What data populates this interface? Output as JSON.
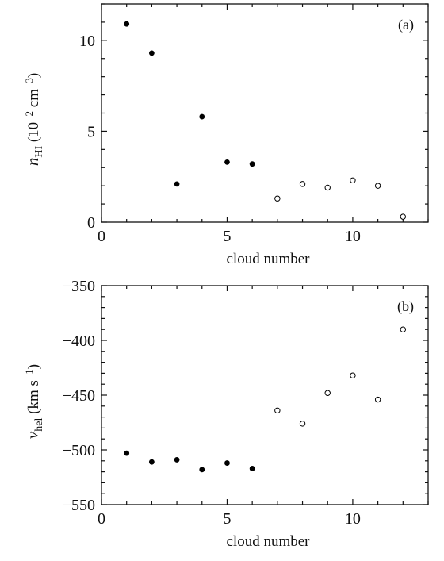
{
  "chart_data": [
    {
      "type": "scatter",
      "panel": "(a)",
      "xlabel": "cloud number",
      "ylabel": {
        "symbol": "n",
        "subscript": "HI",
        "unit_prefix": " (10",
        "exponent": "−2",
        "unit_mid": " cm",
        "unit_exponent": "−3",
        "unit_suffix": ")"
      },
      "xlim": [
        0,
        13
      ],
      "ylim": [
        0,
        12
      ],
      "xticks": [
        0,
        5,
        10
      ],
      "yticks": [
        0,
        5,
        10
      ],
      "grid": false,
      "series": [
        {
          "marker": "filled-circle",
          "x": [
            1,
            2,
            3,
            4,
            5,
            6
          ],
          "y": [
            10.9,
            9.3,
            2.1,
            5.8,
            3.3,
            3.2
          ]
        },
        {
          "marker": "open-circle",
          "x": [
            7,
            8,
            9,
            10,
            11,
            12
          ],
          "y": [
            1.3,
            2.1,
            1.9,
            2.3,
            2.0,
            0.3
          ]
        }
      ]
    },
    {
      "type": "scatter",
      "panel": "(b)",
      "xlabel": "cloud number",
      "ylabel": {
        "symbol": "v",
        "subscript": "hel",
        "unit_prefix": " (km s",
        "exponent": "−1",
        "unit_suffix": ")"
      },
      "xlim": [
        0,
        13
      ],
      "ylim": [
        -550,
        -350
      ],
      "xticks": [
        0,
        5,
        10
      ],
      "yticks": [
        -550,
        -500,
        -450,
        -400,
        -350
      ],
      "ytick_labels": [
        "−550",
        "−500",
        "−450",
        "−400",
        "−350"
      ],
      "grid": false,
      "series": [
        {
          "marker": "filled-circle",
          "x": [
            1,
            2,
            3,
            4,
            5,
            6
          ],
          "y": [
            -503,
            -511,
            -509,
            -518,
            -512,
            -517
          ]
        },
        {
          "marker": "open-circle",
          "x": [
            7,
            8,
            9,
            10,
            11,
            12
          ],
          "y": [
            -464,
            -476,
            -448,
            -432,
            -454,
            -390
          ]
        }
      ]
    }
  ]
}
